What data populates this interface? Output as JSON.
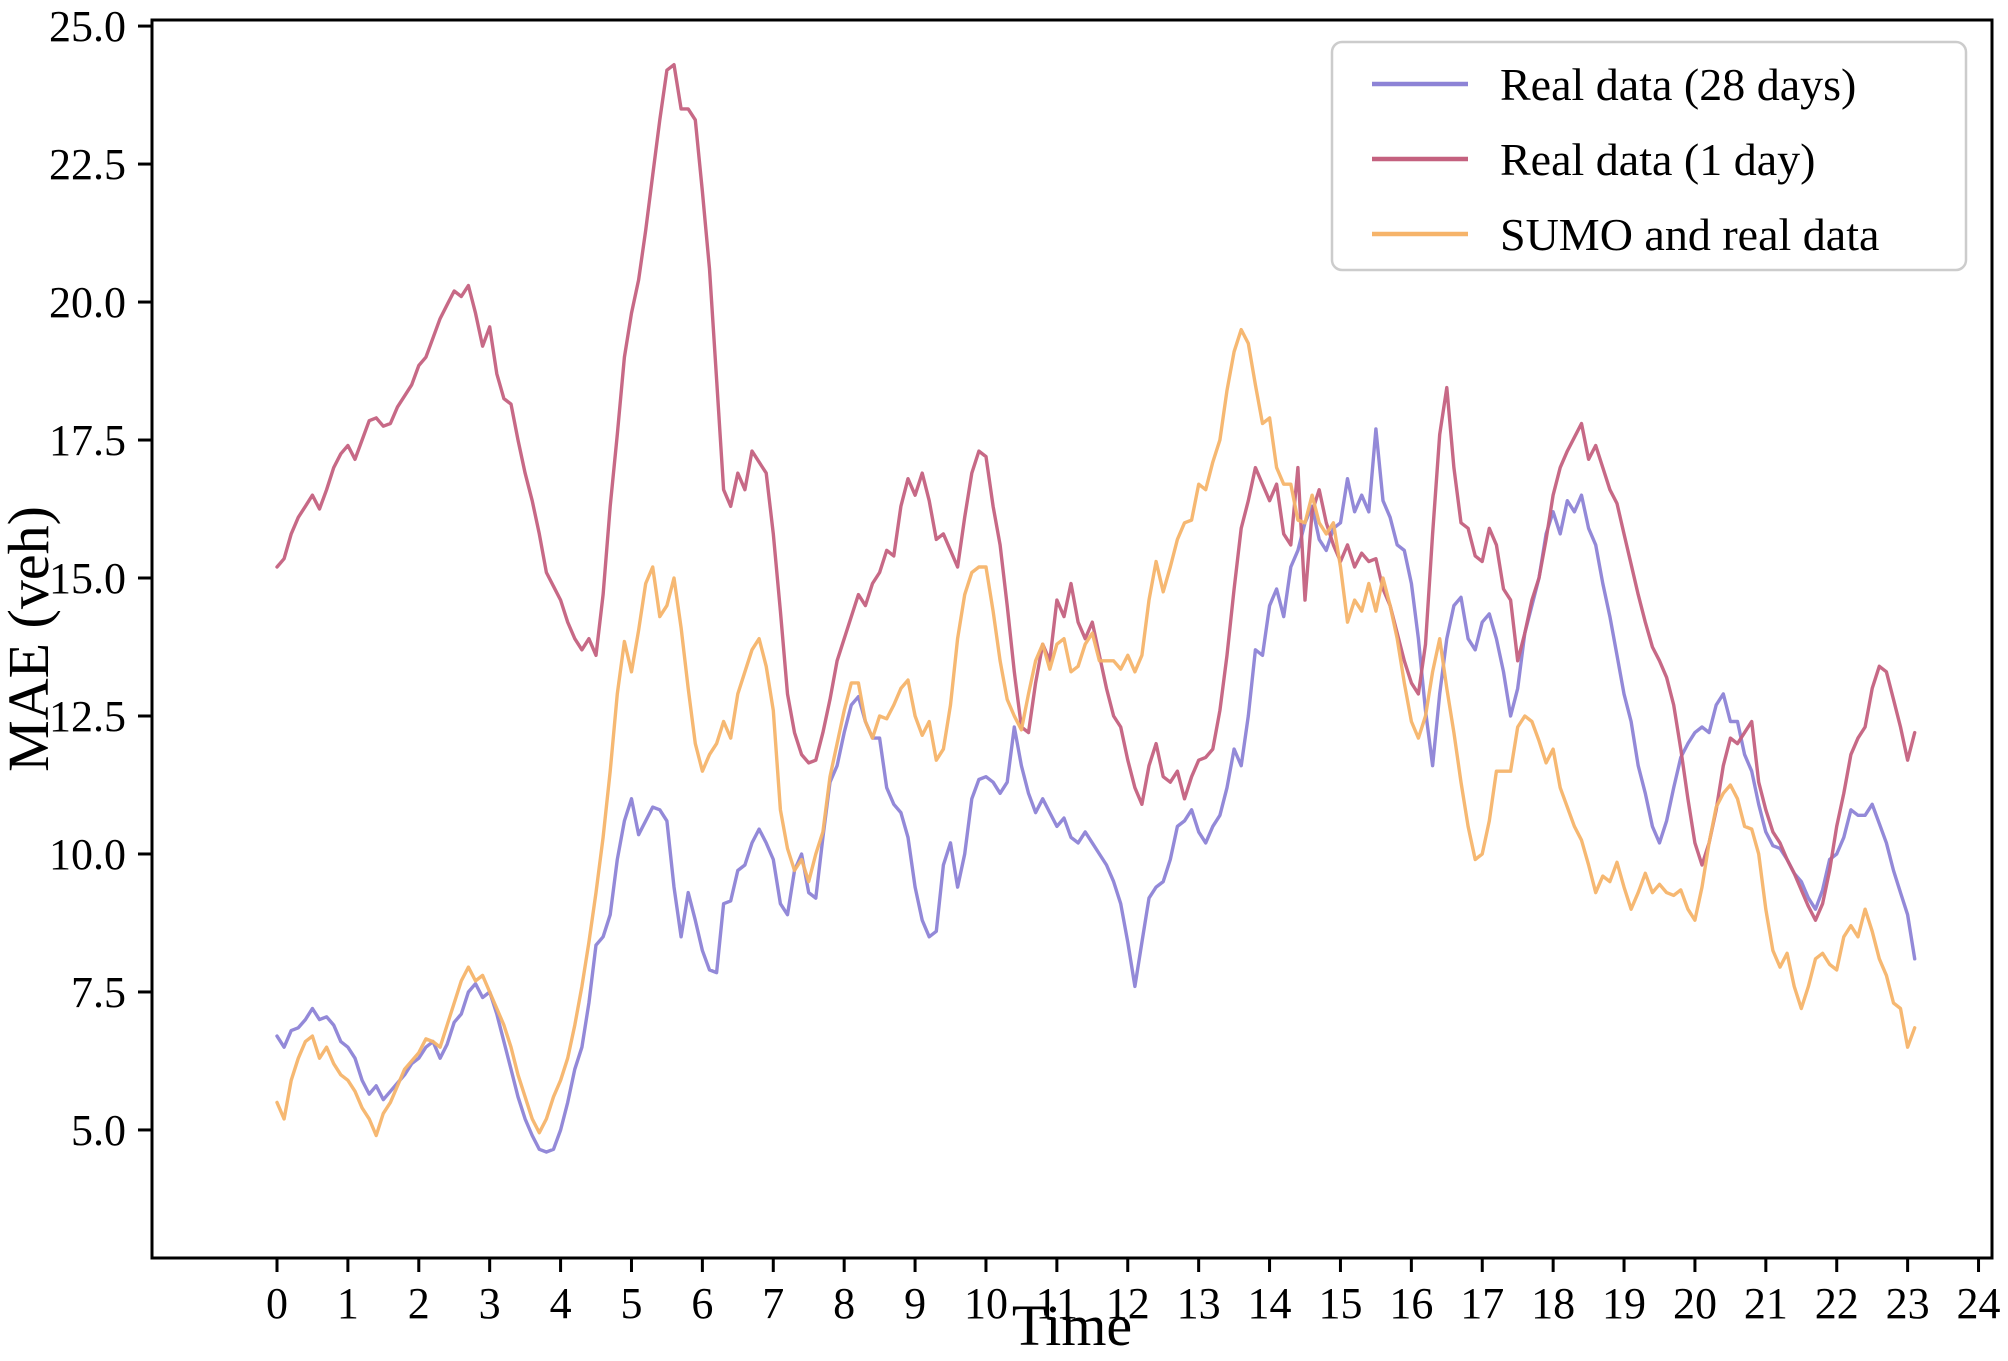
{
  "chart_data": {
    "type": "line",
    "title": "",
    "xlabel": "Time",
    "ylabel": "MAE (veh)",
    "xlim": [
      -1.763,
      24.19
    ],
    "ylim": [
      2.68,
      25.11
    ],
    "x_ticks": [
      0,
      1,
      2,
      3,
      4,
      5,
      6,
      7,
      8,
      9,
      10,
      11,
      12,
      13,
      14,
      15,
      16,
      17,
      18,
      19,
      20,
      21,
      22,
      23,
      24
    ],
    "y_ticks": [
      5.0,
      7.5,
      10.0,
      12.5,
      15.0,
      17.5,
      20.0,
      22.5,
      25.0
    ],
    "grid": false,
    "legend_position": "upper right",
    "t_start": 0.0,
    "t_step": 0.1,
    "series": [
      {
        "name": "Real data (28 days)",
        "color": "#8d83d6",
        "values": [
          6.7,
          6.5,
          6.8,
          6.85,
          7.0,
          7.2,
          7.0,
          7.05,
          6.9,
          6.6,
          6.5,
          6.3,
          5.9,
          5.65,
          5.8,
          5.55,
          5.7,
          5.85,
          6.0,
          6.2,
          6.3,
          6.5,
          6.6,
          6.3,
          6.55,
          6.95,
          7.1,
          7.5,
          7.65,
          7.4,
          7.5,
          7.1,
          6.6,
          6.1,
          5.6,
          5.2,
          4.9,
          4.65,
          4.6,
          4.65,
          5.0,
          5.5,
          6.1,
          6.5,
          7.3,
          8.35,
          8.5,
          8.9,
          9.9,
          10.6,
          11.0,
          10.35,
          10.6,
          10.85,
          10.8,
          10.6,
          9.4,
          8.5,
          9.3,
          8.8,
          8.25,
          7.9,
          7.85,
          9.1,
          9.15,
          9.7,
          9.8,
          10.2,
          10.45,
          10.2,
          9.9,
          9.1,
          8.9,
          9.7,
          10.0,
          9.3,
          9.2,
          10.3,
          11.3,
          11.6,
          12.2,
          12.7,
          12.85,
          12.4,
          12.1,
          12.1,
          11.2,
          10.9,
          10.75,
          10.3,
          9.4,
          8.8,
          8.5,
          8.6,
          9.8,
          10.2,
          9.4,
          10.0,
          11.0,
          11.35,
          11.4,
          11.3,
          11.1,
          11.3,
          12.3,
          11.6,
          11.1,
          10.75,
          11.0,
          10.75,
          10.5,
          10.65,
          10.3,
          10.2,
          10.4,
          10.2,
          10.0,
          9.8,
          9.5,
          9.1,
          8.4,
          7.6,
          8.4,
          9.2,
          9.4,
          9.5,
          9.9,
          10.5,
          10.6,
          10.8,
          10.4,
          10.2,
          10.5,
          10.7,
          11.2,
          11.9,
          11.6,
          12.5,
          13.7,
          13.6,
          14.5,
          14.8,
          14.3,
          15.2,
          15.5,
          16.0,
          16.3,
          15.7,
          15.5,
          15.9,
          16.0,
          16.8,
          16.2,
          16.5,
          16.2,
          17.7,
          16.4,
          16.1,
          15.6,
          15.5,
          14.9,
          13.9,
          12.6,
          11.6,
          12.9,
          13.9,
          14.5,
          14.65,
          13.9,
          13.7,
          14.2,
          14.35,
          13.9,
          13.3,
          12.5,
          13.0,
          14.0,
          14.5,
          15.0,
          15.8,
          16.2,
          15.8,
          16.4,
          16.2,
          16.5,
          15.9,
          15.6,
          14.9,
          14.3,
          13.6,
          12.9,
          12.4,
          11.6,
          11.1,
          10.5,
          10.2,
          10.6,
          11.2,
          11.75,
          12.0,
          12.2,
          12.3,
          12.2,
          12.7,
          12.9,
          12.4,
          12.4,
          11.8,
          11.5,
          10.9,
          10.4,
          10.15,
          10.1,
          9.9,
          9.65,
          9.5,
          9.2,
          9.0,
          9.35,
          9.9,
          10.0,
          10.3,
          10.8,
          10.7,
          10.7,
          10.9,
          10.55,
          10.2,
          9.7,
          9.3,
          8.9,
          8.1
        ]
      },
      {
        "name": "Real data (1 day)",
        "color": "#c4617f",
        "values": [
          15.2,
          15.35,
          15.8,
          16.1,
          16.3,
          16.5,
          16.25,
          16.6,
          17.0,
          17.25,
          17.4,
          17.15,
          17.5,
          17.85,
          17.9,
          17.75,
          17.8,
          18.1,
          18.3,
          18.5,
          18.85,
          19.0,
          19.35,
          19.7,
          19.95,
          20.2,
          20.1,
          20.3,
          19.8,
          19.2,
          19.55,
          18.7,
          18.25,
          18.15,
          17.5,
          16.9,
          16.4,
          15.8,
          15.1,
          14.85,
          14.6,
          14.2,
          13.9,
          13.7,
          13.9,
          13.6,
          14.7,
          16.3,
          17.6,
          19.0,
          19.8,
          20.4,
          21.3,
          22.3,
          23.3,
          24.2,
          24.3,
          23.5,
          23.5,
          23.3,
          22.0,
          20.6,
          18.6,
          16.6,
          16.3,
          16.9,
          16.6,
          17.3,
          17.1,
          16.9,
          15.8,
          14.4,
          12.9,
          12.2,
          11.8,
          11.65,
          11.7,
          12.2,
          12.8,
          13.5,
          13.9,
          14.3,
          14.7,
          14.5,
          14.9,
          15.1,
          15.5,
          15.4,
          16.3,
          16.8,
          16.5,
          16.9,
          16.4,
          15.7,
          15.8,
          15.5,
          15.2,
          16.1,
          16.9,
          17.3,
          17.2,
          16.3,
          15.6,
          14.5,
          13.3,
          12.3,
          12.2,
          13.1,
          13.8,
          13.5,
          14.6,
          14.3,
          14.9,
          14.2,
          13.9,
          14.2,
          13.6,
          13.0,
          12.5,
          12.3,
          11.7,
          11.2,
          10.9,
          11.6,
          12.0,
          11.4,
          11.3,
          11.5,
          11.0,
          11.4,
          11.7,
          11.75,
          11.9,
          12.6,
          13.6,
          14.8,
          15.9,
          16.4,
          17.0,
          16.7,
          16.4,
          16.7,
          15.8,
          15.6,
          17.0,
          14.6,
          16.2,
          16.6,
          16.0,
          15.6,
          15.3,
          15.6,
          15.2,
          15.45,
          15.3,
          15.35,
          14.8,
          14.5,
          14.0,
          13.5,
          13.1,
          12.9,
          13.8,
          15.8,
          17.6,
          18.45,
          17.0,
          16.0,
          15.9,
          15.4,
          15.3,
          15.9,
          15.6,
          14.8,
          14.6,
          13.5,
          14.0,
          14.6,
          15.0,
          15.7,
          16.5,
          17.0,
          17.3,
          17.55,
          17.8,
          17.15,
          17.4,
          17.0,
          16.6,
          16.35,
          15.8,
          15.25,
          14.7,
          14.2,
          13.75,
          13.5,
          13.2,
          12.7,
          11.9,
          11.0,
          10.2,
          9.8,
          10.2,
          10.8,
          11.6,
          12.1,
          12.0,
          12.2,
          12.4,
          11.3,
          10.8,
          10.4,
          10.2,
          9.9,
          9.65,
          9.35,
          9.05,
          8.8,
          9.1,
          9.7,
          10.5,
          11.1,
          11.8,
          12.1,
          12.3,
          13.0,
          13.4,
          13.3,
          12.8,
          12.3,
          11.7,
          12.2
        ]
      },
      {
        "name": "SUMO and real data",
        "color": "#f6b46a",
        "values": [
          5.5,
          5.2,
          5.9,
          6.3,
          6.6,
          6.7,
          6.3,
          6.5,
          6.2,
          6.0,
          5.9,
          5.7,
          5.4,
          5.2,
          4.9,
          5.3,
          5.5,
          5.8,
          6.1,
          6.25,
          6.4,
          6.65,
          6.6,
          6.5,
          6.9,
          7.3,
          7.7,
          7.95,
          7.7,
          7.8,
          7.5,
          7.2,
          6.9,
          6.5,
          6.0,
          5.6,
          5.2,
          4.95,
          5.2,
          5.6,
          5.9,
          6.3,
          6.9,
          7.6,
          8.4,
          9.3,
          10.3,
          11.5,
          12.9,
          13.85,
          13.3,
          14.05,
          14.9,
          15.2,
          14.3,
          14.5,
          15.0,
          14.1,
          13.0,
          12.0,
          11.5,
          11.8,
          12.0,
          12.4,
          12.1,
          12.9,
          13.3,
          13.7,
          13.9,
          13.4,
          12.6,
          10.8,
          10.1,
          9.7,
          9.9,
          9.5,
          10.0,
          10.4,
          11.4,
          12.0,
          12.6,
          13.1,
          13.1,
          12.4,
          12.1,
          12.5,
          12.45,
          12.7,
          13.0,
          13.15,
          12.5,
          12.15,
          12.4,
          11.7,
          11.9,
          12.7,
          13.9,
          14.7,
          15.1,
          15.2,
          15.2,
          14.4,
          13.5,
          12.8,
          12.5,
          12.25,
          12.9,
          13.5,
          13.8,
          13.35,
          13.8,
          13.9,
          13.3,
          13.4,
          13.8,
          14.0,
          13.5,
          13.5,
          13.5,
          13.35,
          13.6,
          13.3,
          13.6,
          14.6,
          15.3,
          14.75,
          15.2,
          15.7,
          16.0,
          16.05,
          16.7,
          16.6,
          17.1,
          17.5,
          18.4,
          19.1,
          19.5,
          19.25,
          18.5,
          17.8,
          17.9,
          17.0,
          16.7,
          16.7,
          16.05,
          16.0,
          16.5,
          16.0,
          15.8,
          16.0,
          15.2,
          14.2,
          14.6,
          14.4,
          14.9,
          14.4,
          15.0,
          14.5,
          13.9,
          13.1,
          12.4,
          12.1,
          12.5,
          13.3,
          13.9,
          13.0,
          12.2,
          11.3,
          10.5,
          9.9,
          10.0,
          10.6,
          11.5,
          11.5,
          11.5,
          12.3,
          12.5,
          12.4,
          12.05,
          11.65,
          11.9,
          11.2,
          10.85,
          10.5,
          10.25,
          9.8,
          9.3,
          9.6,
          9.5,
          9.85,
          9.4,
          9.0,
          9.3,
          9.65,
          9.3,
          9.45,
          9.3,
          9.25,
          9.35,
          9.0,
          8.8,
          9.4,
          10.2,
          10.85,
          11.1,
          11.25,
          11.0,
          10.5,
          10.45,
          10.0,
          9.0,
          8.25,
          7.95,
          8.2,
          7.6,
          7.2,
          7.6,
          8.1,
          8.2,
          8.0,
          7.9,
          8.5,
          8.7,
          8.5,
          9.0,
          8.6,
          8.1,
          7.8,
          7.3,
          7.2,
          6.5,
          6.85
        ]
      }
    ]
  }
}
